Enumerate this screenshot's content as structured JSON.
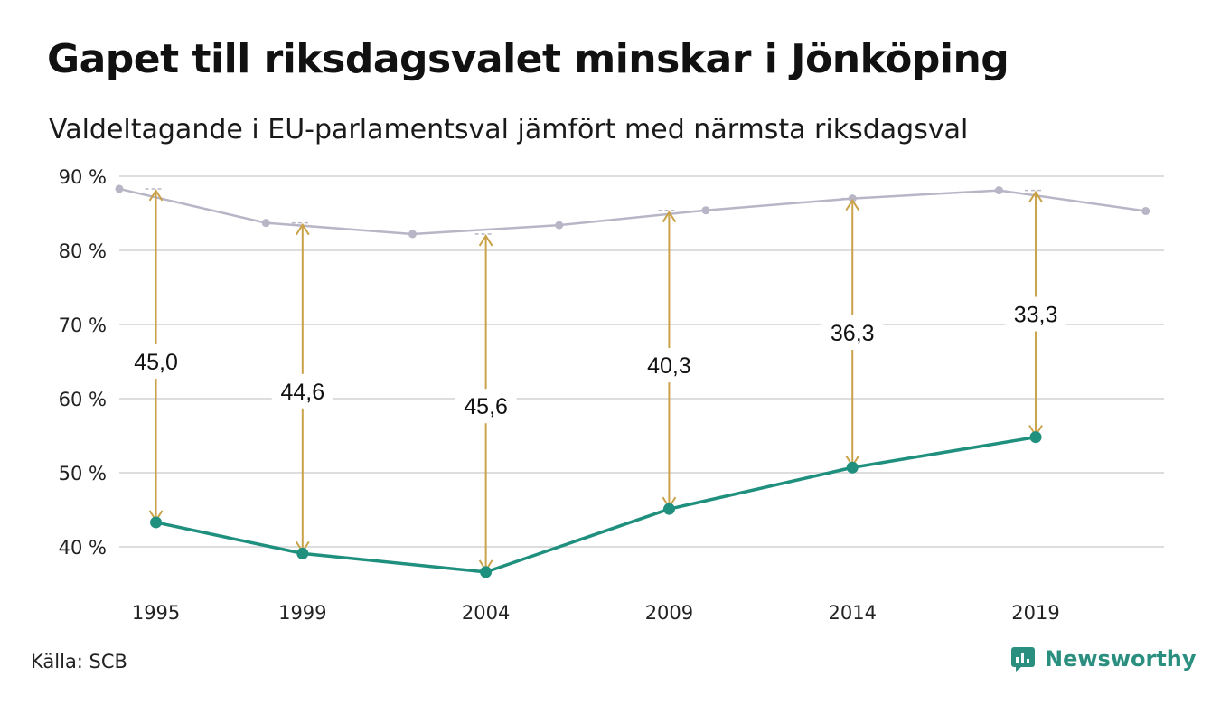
{
  "title": "Gapet till riksdagsvalet minskar i Jönköping",
  "subtitle": "Valdeltagande i EU-parlamentsval jämfört med närmsta riksdagsval",
  "source": "Källa: SCB",
  "brand": {
    "name": "Newsworthy",
    "color": "#2a8f7f"
  },
  "chart_data": {
    "type": "line",
    "ylim": [
      35,
      90
    ],
    "yticks": [
      40,
      50,
      60,
      70,
      80,
      90
    ],
    "ytick_labels": [
      "40 %",
      "50 %",
      "60 %",
      "70 %",
      "80 %",
      "90 %"
    ],
    "xlim": [
      1994.0,
      2022.5
    ],
    "xticks": [
      1995,
      1999,
      2004,
      2009,
      2014,
      2019
    ],
    "xtick_labels": [
      "1995",
      "1999",
      "2004",
      "2009",
      "2014",
      "2019"
    ],
    "grid": true,
    "legend": "none",
    "colors": {
      "riksdag": "#b8b6c6",
      "eu": "#1f8f7e",
      "arrow": "#c9a24a",
      "grid": "#dddddd"
    },
    "series": [
      {
        "key": "riksdag",
        "x": [
          1994,
          1998,
          2002,
          2006,
          2010,
          2014,
          2018,
          2022
        ],
        "values": [
          88.3,
          83.7,
          82.2,
          83.4,
          85.4,
          87.0,
          88.1,
          85.3
        ]
      },
      {
        "key": "eu",
        "x": [
          1995,
          1999,
          2004,
          2009,
          2014,
          2019
        ],
        "values": [
          43.3,
          39.1,
          36.6,
          45.1,
          50.7,
          54.8
        ]
      }
    ],
    "gaps": [
      {
        "x": 1995,
        "top": 88.3,
        "bottom": 43.3,
        "label": "45,0",
        "label_y": 65.0
      },
      {
        "x": 1999,
        "top": 83.7,
        "bottom": 39.1,
        "label": "44,6",
        "label_y": 61.0
      },
      {
        "x": 2004,
        "top": 82.2,
        "bottom": 36.6,
        "label": "45,6",
        "label_y": 59.0
      },
      {
        "x": 2009,
        "top": 85.4,
        "bottom": 45.1,
        "label": "40,3",
        "label_y": 64.5
      },
      {
        "x": 2014,
        "top": 87.0,
        "bottom": 50.7,
        "label": "36,3",
        "label_y": 68.9
      },
      {
        "x": 2019,
        "top": 88.1,
        "bottom": 54.8,
        "label": "33,3",
        "label_y": 71.4
      }
    ]
  }
}
